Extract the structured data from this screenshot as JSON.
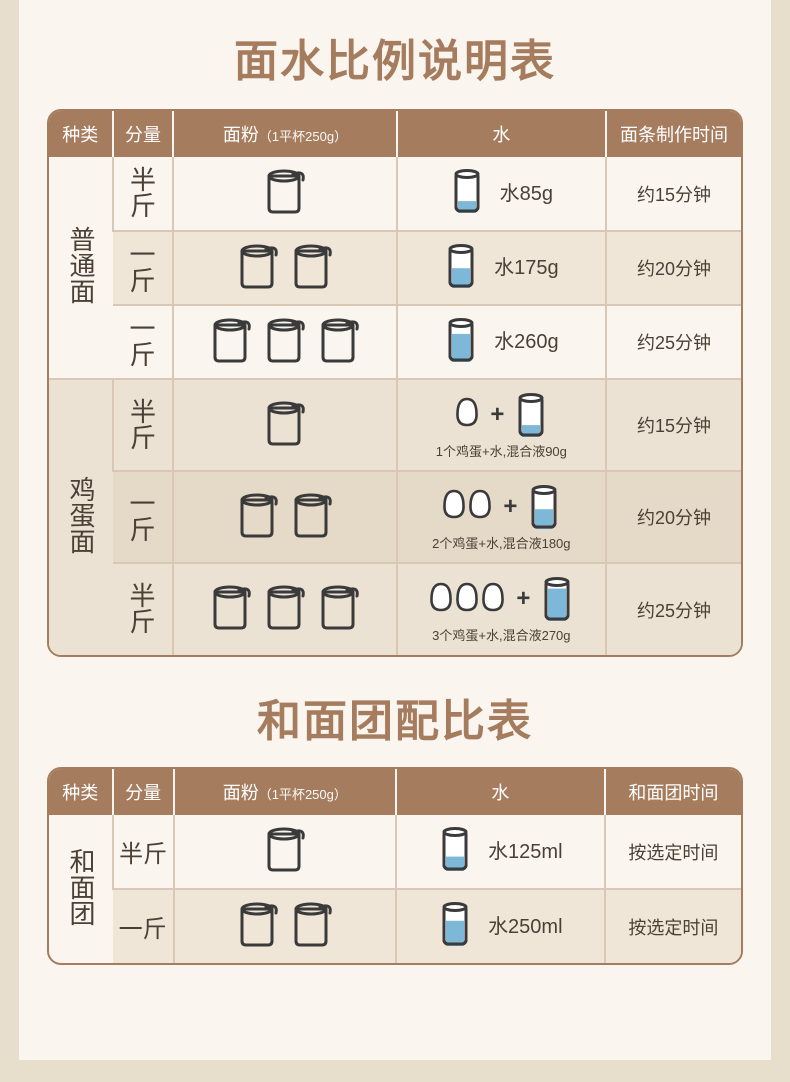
{
  "colors": {
    "header_bg": "#a67c5e",
    "header_text": "#ffffff",
    "title_text": "#a67c5e",
    "page_bg": "#faf6ef",
    "outer_bg": "#e8decc",
    "border": "#d9c8b5",
    "row_alt1": "#f0e6d8",
    "row_sec": "#ece2d3",
    "row_sec2": "#e5dac8",
    "text": "#4a4036",
    "icon_stroke": "#3a3a3a",
    "water_fill": "#7db8d8",
    "water_fill_full": "#6eb3d6"
  },
  "headers": {
    "type": "种类",
    "amount": "分量",
    "flour": "面粉",
    "flour_sub": "（1平杯250g）",
    "water": "水",
    "time1": "面条制作时间",
    "time2": "和面团时间"
  },
  "title1": "面水比例说明表",
  "title2": "和面团配比表",
  "labels": {
    "type_plain": "普通面",
    "type_egg": "鸡蛋面",
    "type_dough": "和面团",
    "half_jin_a": "半",
    "half_jin_b": "斤",
    "one_jin_a": "一",
    "one_jin_b": "斤"
  },
  "table1": {
    "r1": {
      "cups": 1,
      "water_level": 0.33,
      "water_text": "水85g",
      "time": "约15分钟"
    },
    "r2": {
      "cups": 2,
      "water_level": 0.55,
      "water_text": "水175g",
      "time": "约20分钟"
    },
    "r3": {
      "cups": 3,
      "water_level": 0.78,
      "water_text": "水260g",
      "time": "约25分钟"
    },
    "r4": {
      "cups": 1,
      "eggs": 1,
      "water_level": 0.33,
      "caption": "1个鸡蛋+水,混合液90g",
      "time": "约15分钟"
    },
    "r5": {
      "cups": 2,
      "eggs": 2,
      "water_level": 0.55,
      "caption": "2个鸡蛋+水,混合液180g",
      "time": "约20分钟"
    },
    "r6": {
      "cups": 3,
      "eggs": 3,
      "water_level": 0.9,
      "caption": "3个鸡蛋+水,混合液270g",
      "time": "约25分钟"
    }
  },
  "table2": {
    "r1": {
      "cups": 1,
      "water_level": 0.4,
      "water_text": "水125ml",
      "time": "按选定时间"
    },
    "r2": {
      "cups": 2,
      "water_level": 0.7,
      "water_text": "水250ml",
      "time": "按选定时间"
    }
  }
}
